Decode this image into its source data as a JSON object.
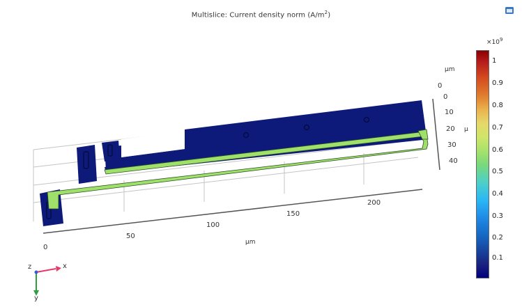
{
  "plot": {
    "title_main": "Multislice: Current density norm (A/m",
    "title_exp": "2",
    "title_close": ")",
    "x_axis_label": "µm",
    "x_ticks": [
      "0",
      "50",
      "100",
      "150",
      "200"
    ],
    "y_axis_label": "µm",
    "y_ticks": [
      "0",
      "10",
      "20",
      "30",
      "40"
    ],
    "y_unit_short": "µ",
    "z_tick": "0"
  },
  "colorbar": {
    "multiplier": "×10",
    "multiplier_exp": "9",
    "ticks": [
      "1",
      "0.9",
      "0.8",
      "0.7",
      "0.6",
      "0.5",
      "0.4",
      "0.3",
      "0.2",
      "0.1"
    ]
  },
  "triad": {
    "z_label": "z",
    "x_label": "x",
    "y_label": "y"
  },
  "colors": {
    "domain_fill": "#0d1a7a",
    "conductor": "#9ee06a",
    "grid": "#bdbdbd",
    "x_axis_color": "#e5396b",
    "y_axis_color": "#2e9e3e"
  }
}
